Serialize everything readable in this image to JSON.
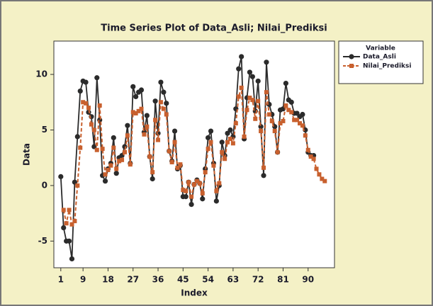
{
  "chart_data": {
    "type": "line",
    "title": "Time Series Plot of Data_Asli; Nilai_Prediksi",
    "xlabel": "Index",
    "ylabel": "Data",
    "legend_title": "Variable",
    "legend": "right",
    "x": [
      1,
      2,
      3,
      4,
      5,
      6,
      7,
      8,
      9,
      10,
      11,
      12,
      13,
      14,
      15,
      16,
      17,
      18,
      19,
      20,
      21,
      22,
      23,
      24,
      25,
      26,
      27,
      28,
      29,
      30,
      31,
      32,
      33,
      34,
      35,
      36,
      37,
      38,
      39,
      40,
      41,
      42,
      43,
      44,
      45,
      46,
      47,
      48,
      49,
      50,
      51,
      52,
      53,
      54,
      55,
      56,
      57,
      58,
      59,
      60,
      61,
      62,
      63,
      64,
      65,
      66,
      67,
      68,
      69,
      70,
      71,
      72,
      73,
      74,
      75,
      76,
      77,
      78,
      79,
      80,
      81,
      82,
      83,
      84,
      85,
      86,
      87,
      88,
      89,
      90,
      91,
      92,
      93,
      94,
      95,
      96
    ],
    "xlim": [
      -1.5,
      99.5
    ],
    "xticks": [
      1,
      9,
      18,
      27,
      36,
      45,
      54,
      63,
      72,
      81,
      90
    ],
    "ylim": [
      -7.4,
      13
    ],
    "yticks": [
      -5,
      0,
      5,
      10
    ],
    "series": [
      {
        "name": "Data_Asli",
        "color": "#2b2b2b",
        "marker": "circle",
        "dashed": false,
        "values": [
          0.8,
          -3.8,
          -5.0,
          -5.0,
          -6.6,
          0.3,
          4.4,
          8.5,
          9.4,
          9.3,
          6.6,
          6.2,
          3.5,
          9.7,
          5.9,
          0.9,
          0.4,
          1.5,
          2.0,
          4.3,
          1.1,
          2.5,
          2.7,
          3.5,
          5.4,
          2.0,
          8.9,
          8.0,
          8.4,
          8.6,
          4.8,
          6.3,
          2.6,
          0.6,
          7.6,
          4.7,
          9.3,
          8.4,
          7.4,
          3.1,
          2.2,
          4.9,
          1.5,
          1.8,
          -1.0,
          -1.0,
          0.3,
          -1.7,
          0.1,
          0.5,
          0.2,
          -1.2,
          1.5,
          4.3,
          4.9,
          2.0,
          -1.4,
          0.0,
          3.9,
          2.7,
          4.7,
          5.0,
          4.4,
          6.9,
          10.5,
          11.6,
          4.2,
          7.9,
          10.2,
          9.8,
          6.7,
          9.4,
          5.3,
          0.9,
          11.1,
          7.3,
          6.4,
          5.3,
          3.0,
          6.8,
          6.9,
          9.2,
          7.7,
          7.5,
          6.5,
          6.5,
          6.2,
          6.4,
          5.0,
          3.0,
          2.7,
          2.7,
          null,
          null,
          null,
          null
        ]
      },
      {
        "name": "Nilai_Prediksi",
        "color": "#c8602e",
        "marker": "square",
        "dashed": true,
        "values": [
          null,
          -2.2,
          -3.4,
          -2.2,
          -3.5,
          -3.2,
          0.0,
          3.4,
          7.5,
          7.4,
          7.0,
          5.5,
          5.0,
          3.2,
          7.2,
          3.3,
          1.0,
          1.4,
          1.8,
          3.4,
          1.5,
          2.2,
          2.3,
          3.0,
          4.5,
          1.9,
          6.6,
          6.5,
          6.7,
          6.9,
          4.6,
          5.3,
          2.6,
          1.2,
          5.9,
          4.1,
          7.5,
          6.9,
          6.4,
          3.1,
          2.1,
          3.9,
          1.6,
          1.9,
          -0.4,
          -0.5,
          0.3,
          -1.0,
          0.1,
          0.4,
          0.2,
          -0.7,
          1.2,
          3.3,
          3.9,
          1.8,
          -0.5,
          0.2,
          3.0,
          2.4,
          3.9,
          4.2,
          3.8,
          5.6,
          8.0,
          8.8,
          4.4,
          6.8,
          7.9,
          7.7,
          6.0,
          7.6,
          4.9,
          1.6,
          8.4,
          6.4,
          5.8,
          4.9,
          3.0,
          5.6,
          5.8,
          7.2,
          6.8,
          6.6,
          5.9,
          5.9,
          5.6,
          5.4,
          4.5,
          3.2,
          2.6,
          2.4,
          1.5,
          1.0,
          0.6,
          0.4
        ]
      }
    ]
  }
}
